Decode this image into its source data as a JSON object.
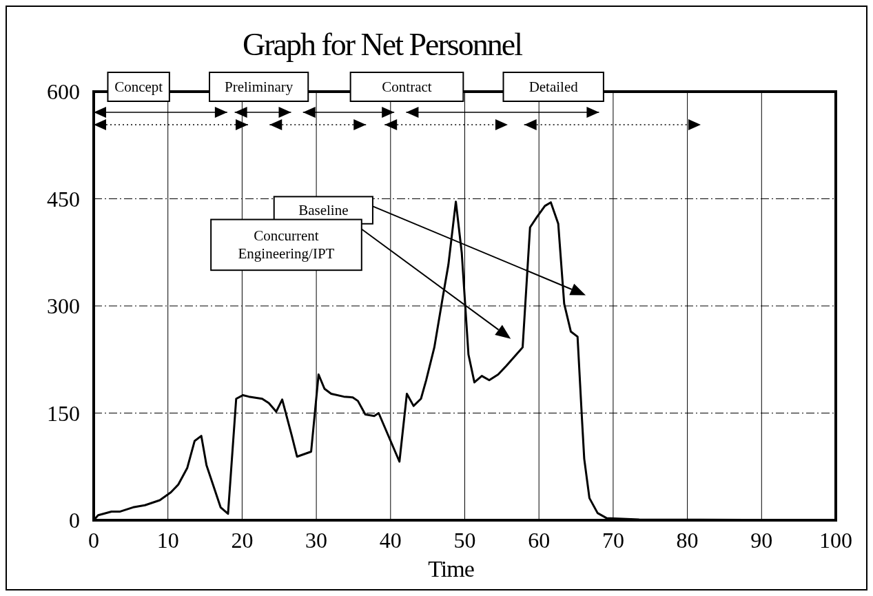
{
  "chart_data": {
    "type": "line",
    "title": "Graph for Net Personnel",
    "xlabel": "Time",
    "x": [
      0,
      0.6,
      2.4,
      3.5,
      5.3,
      6.9,
      8.9,
      10.4,
      11.4,
      12.6,
      13.6,
      14.5,
      15.2,
      17.1,
      18.1,
      19.2,
      20.1,
      20.9,
      22.7,
      23.6,
      24.6,
      25.4,
      26.7,
      27.4,
      29.3,
      30.3,
      31.1,
      32,
      33.7,
      34.9,
      35.6,
      36.6,
      37.8,
      38.4,
      41.2,
      42.2,
      43.1,
      44.1,
      44.8,
      45.9,
      47,
      47.8,
      48.8,
      49.6,
      50.5,
      51.3,
      52.3,
      53.3,
      54.5,
      55.6,
      57.8,
      58.8,
      59.7,
      60.8,
      61.6,
      62.6,
      63.4,
      64.3,
      65.2,
      65.8,
      66.1,
      66.8,
      67.9,
      69.1,
      73.5,
      100
    ],
    "series": [
      {
        "color": "#000000",
        "values": [
          0,
          7,
          12,
          12,
          18,
          21,
          28,
          39,
          50,
          73,
          111,
          118,
          77,
          18,
          9,
          170,
          175,
          173,
          170,
          164,
          152,
          169,
          118,
          89,
          96,
          204,
          184,
          177,
          173,
          172,
          167,
          148,
          146,
          150,
          82,
          177,
          160,
          170,
          196,
          242,
          310,
          358,
          446,
          374,
          232,
          193,
          202,
          196,
          204,
          216,
          242,
          410,
          424,
          440,
          445,
          415,
          303,
          264,
          257,
          141,
          86,
          31,
          10,
          3,
          1,
          0
        ]
      }
    ],
    "xlim": [
      0,
      100
    ],
    "ylim": [
      0,
      600
    ],
    "xticks": [
      0,
      10,
      20,
      30,
      40,
      50,
      60,
      70,
      80,
      90,
      100
    ],
    "yticks": [
      0,
      150,
      300,
      450,
      600
    ],
    "grid": true,
    "marker": "none",
    "line_style": "solid",
    "annotations": [
      "Concept",
      "Preliminary",
      "Contract",
      "Detailed",
      "Baseline",
      "Concurrent Engineering/IPT"
    ]
  }
}
